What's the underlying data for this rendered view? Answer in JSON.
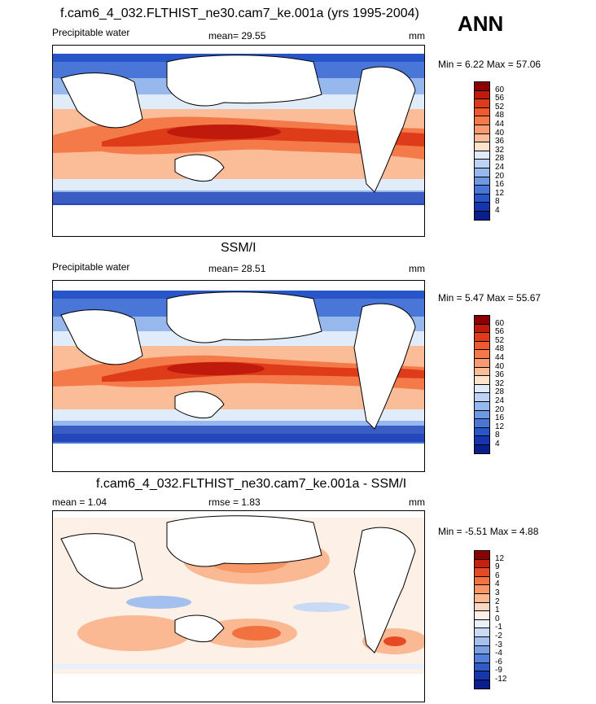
{
  "ann_label": "ANN",
  "panels": [
    {
      "title": "f.cam6_4_032.FLTHIST_ne30.cam7_ke.001a (yrs 1995-2004)",
      "left_label": "Precipitable water",
      "mid_label": "mean=  29.55",
      "units": "mm",
      "minmax": "Min =   6.22 Max =  57.06",
      "colorbar_labels": [
        "60",
        "56",
        "52",
        "48",
        "44",
        "40",
        "36",
        "32",
        "28",
        "24",
        "20",
        "16",
        "12",
        "8",
        "4"
      ],
      "colorbar_colors": [
        "#8b0000",
        "#c01a0c",
        "#de3b1a",
        "#ee5a2e",
        "#f47a4a",
        "#f99a70",
        "#fbbc98",
        "#fde2cc",
        "#e0ecfa",
        "#bcd3f3",
        "#96b8ec",
        "#6e98e3",
        "#4a76d8",
        "#2855c8",
        "#1434b0",
        "#0a1e8c"
      ]
    },
    {
      "title": "SSM/I",
      "left_label": "Precipitable water",
      "mid_label": "mean=  28.51",
      "units": "mm",
      "minmax": "Min =   5.47 Max =  55.67",
      "colorbar_labels": [
        "60",
        "56",
        "52",
        "48",
        "44",
        "40",
        "36",
        "32",
        "28",
        "24",
        "20",
        "16",
        "12",
        "8",
        "4"
      ],
      "colorbar_colors": [
        "#8b0000",
        "#c01a0c",
        "#de3b1a",
        "#ee5a2e",
        "#f47a4a",
        "#f99a70",
        "#fbbc98",
        "#fde2cc",
        "#e0ecfa",
        "#bcd3f3",
        "#96b8ec",
        "#6e98e3",
        "#4a76d8",
        "#2855c8",
        "#1434b0",
        "#0a1e8c"
      ]
    },
    {
      "title": "f.cam6_4_032.FLTHIST_ne30.cam7_ke.001a - SSM/I",
      "left_label": "mean =   1.04",
      "mid_label": "rmse =   1.83",
      "units": "mm",
      "minmax": "Min =  -5.51 Max =   4.88",
      "colorbar_labels": [
        "12",
        "9",
        "6",
        "4",
        "3",
        "2",
        "1",
        "0",
        "-1",
        "-2",
        "-3",
        "-4",
        "-6",
        "-9",
        "-12"
      ],
      "colorbar_colors": [
        "#8b0000",
        "#c8200e",
        "#e54a24",
        "#f2723f",
        "#f79766",
        "#fab893",
        "#fcd8c0",
        "#fdf0e6",
        "#e8f0fb",
        "#c9daf5",
        "#a4c0ee",
        "#7ca0e4",
        "#5580d9",
        "#2f5bc8",
        "#1637ac",
        "#0a1e8c"
      ]
    }
  ],
  "chart_data": [
    {
      "type": "heatmap",
      "title": "f.cam6_4_032.FLTHIST_ne30.cam7_ke.001a (yrs 1995-2004)",
      "field": "Precipitable water",
      "units": "mm",
      "mean": 29.55,
      "min": 6.22,
      "max": 57.06,
      "contour_levels": [
        4,
        8,
        12,
        16,
        20,
        24,
        28,
        32,
        36,
        40,
        44,
        48,
        52,
        56,
        60
      ]
    },
    {
      "type": "heatmap",
      "title": "SSM/I",
      "field": "Precipitable water",
      "units": "mm",
      "mean": 28.51,
      "min": 5.47,
      "max": 55.67,
      "contour_levels": [
        4,
        8,
        12,
        16,
        20,
        24,
        28,
        32,
        36,
        40,
        44,
        48,
        52,
        56,
        60
      ]
    },
    {
      "type": "heatmap",
      "title": "f.cam6_4_032.FLTHIST_ne30.cam7_ke.001a - SSM/I",
      "units": "mm",
      "mean": 1.04,
      "rmse": 1.83,
      "min": -5.51,
      "max": 4.88,
      "contour_levels": [
        -12,
        -9,
        -6,
        -4,
        -3,
        -2,
        -1,
        0,
        1,
        2,
        3,
        4,
        6,
        9,
        12
      ]
    }
  ]
}
